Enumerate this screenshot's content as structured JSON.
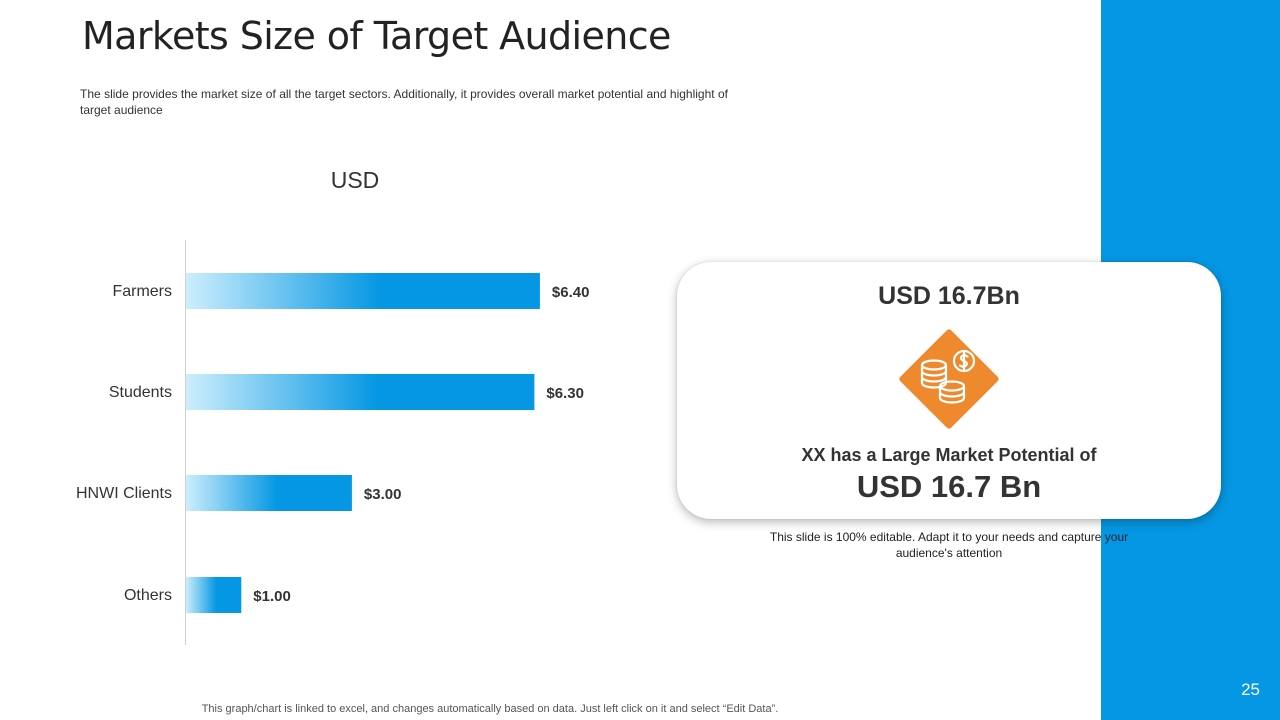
{
  "slide": {
    "title": "Markets Size of Target Audience",
    "subtitle": "The slide provides  the market size of all the target sectors. Additionally, it provides  overall market potential and highlight of target audience",
    "page_number": "25",
    "footer": "This graph/chart is linked to excel,  and changes automatically based on data. Just left click on it and select “Edit Data”.",
    "accent_color": "#0597e3"
  },
  "chart_data": {
    "type": "bar",
    "orientation": "horizontal",
    "title": "USD",
    "categories": [
      "Farmers",
      "Students",
      "HNWI Clients",
      "Others"
    ],
    "values": [
      6.4,
      6.3,
      3.0,
      1.0
    ],
    "data_labels": [
      "$6.40",
      "$6.30",
      "$3.00",
      "$1.00"
    ],
    "xlim": [
      0,
      8
    ],
    "grid": false,
    "legend": "none",
    "bar_gradient": [
      "#cdeefd",
      "#0597e3"
    ]
  },
  "card": {
    "heading": "USD 16.7Bn",
    "icon": "coins-dollar-icon",
    "icon_color": "#ee8a2d",
    "caption": "XX has a Large Market Potential of",
    "value": "USD 16.7 Bn",
    "note": "This slide is 100% editable. Adapt it to your needs and capture your audience's attention"
  }
}
